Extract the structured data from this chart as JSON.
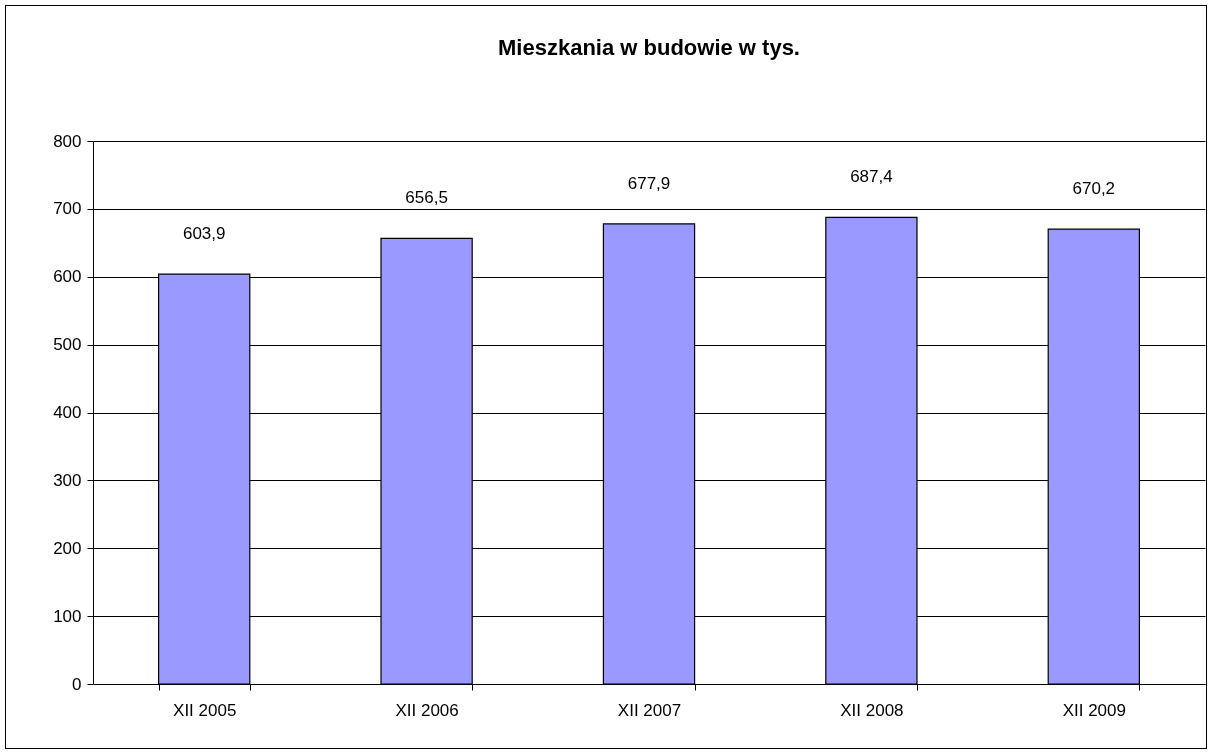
{
  "chart_data": {
    "type": "bar",
    "title": "Mieszkania w budowie w tys.",
    "categories": [
      "XII 2005",
      "XII 2006",
      "XII 2007",
      "XII 2008",
      "XII 2009"
    ],
    "values": [
      603.9,
      656.5,
      677.9,
      687.4,
      670.2
    ],
    "value_labels": [
      "603,9",
      "656,5",
      "677,9",
      "687,4",
      "670,2"
    ],
    "color": "#9999ff",
    "ylim": [
      0,
      800
    ],
    "yticks": [
      0,
      100,
      200,
      300,
      400,
      500,
      600,
      700,
      800
    ],
    "grid": "y"
  }
}
